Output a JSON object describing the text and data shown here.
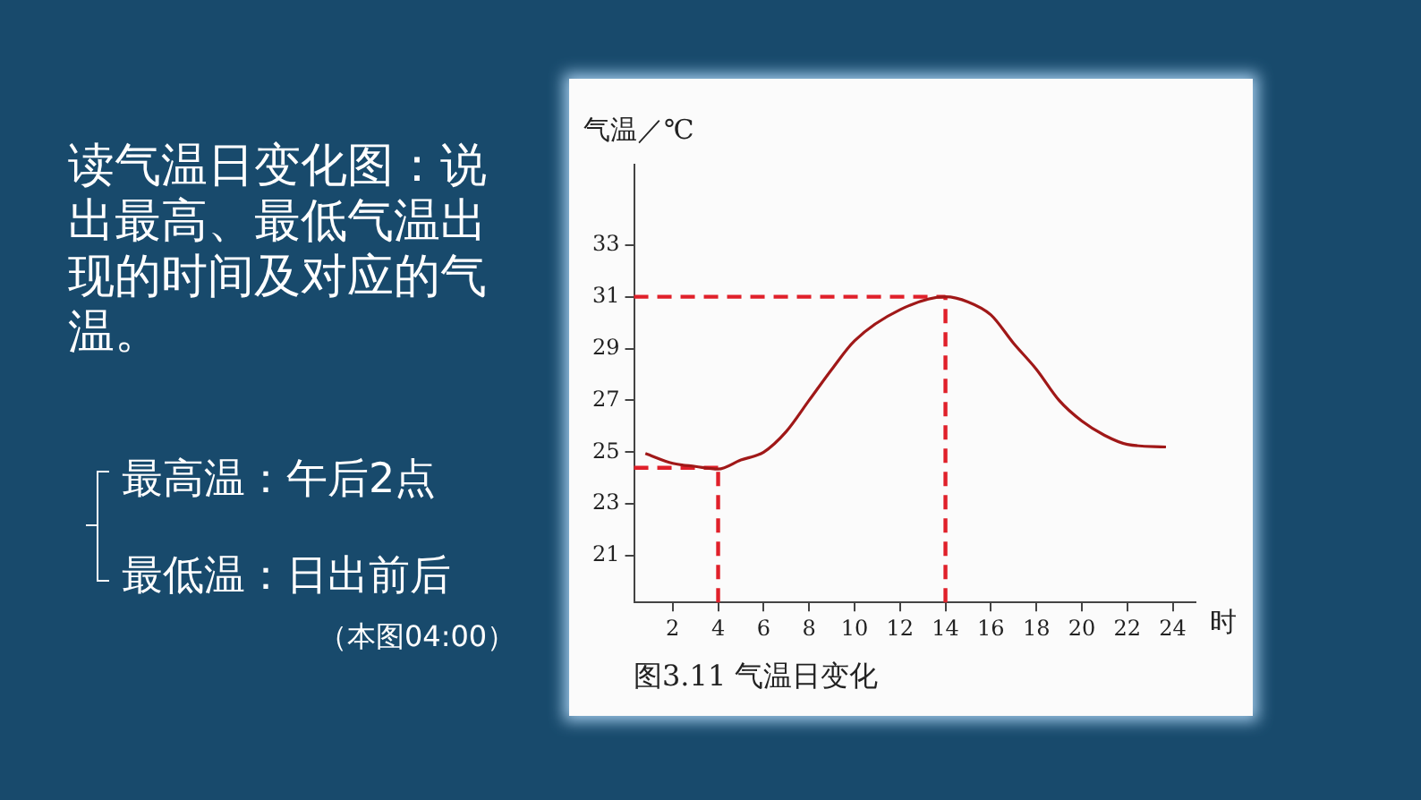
{
  "chart_data": {
    "type": "line",
    "xlabel": "时",
    "ylabel": "气温／℃",
    "x": [
      0.8,
      2,
      3,
      4,
      5,
      6,
      7,
      8,
      9,
      10,
      12,
      14,
      15,
      16,
      17,
      18,
      19,
      20,
      21,
      22,
      23.7
    ],
    "series": [
      {
        "color": "#a01818",
        "values": [
          24.95,
          24.57,
          24.45,
          24.35,
          24.7,
          25.0,
          25.8,
          27.0,
          28.2,
          29.3,
          30.5,
          31.0,
          30.8,
          30.3,
          29.2,
          28.2,
          27.0,
          26.2,
          25.65,
          25.3,
          25.2
        ]
      }
    ],
    "xlim": [
      0.3,
      25
    ],
    "xticks": [
      2,
      4,
      6,
      8,
      10,
      12,
      14,
      16,
      18,
      20,
      22,
      24
    ],
    "ylim": [
      19.2,
      36.1
    ],
    "yticks": [
      21,
      23,
      25,
      27,
      29,
      31,
      33
    ],
    "ref_lines": [
      {
        "axis": "y",
        "value": 31,
        "color": "#e0202a",
        "line_style": "dashed"
      },
      {
        "axis": "x",
        "value": 14,
        "color": "#e0202a",
        "line_style": "dashed"
      },
      {
        "axis": "y",
        "value": 24.4,
        "color": "#e0202a",
        "line_style": "dashed"
      },
      {
        "axis": "x",
        "value": 4,
        "color": "#e0202a",
        "line_style": "dashed"
      }
    ],
    "annotations": [
      "读气温日变化图：说出最高、最低气温出现的时间及对应的气温。",
      "最高温：午后2点",
      "最低温：日出前后",
      "（本图04:00）",
      "图3.11 气温日变化"
    ],
    "grid": false,
    "legend": false,
    "marker": "none",
    "line_style": "solid"
  }
}
